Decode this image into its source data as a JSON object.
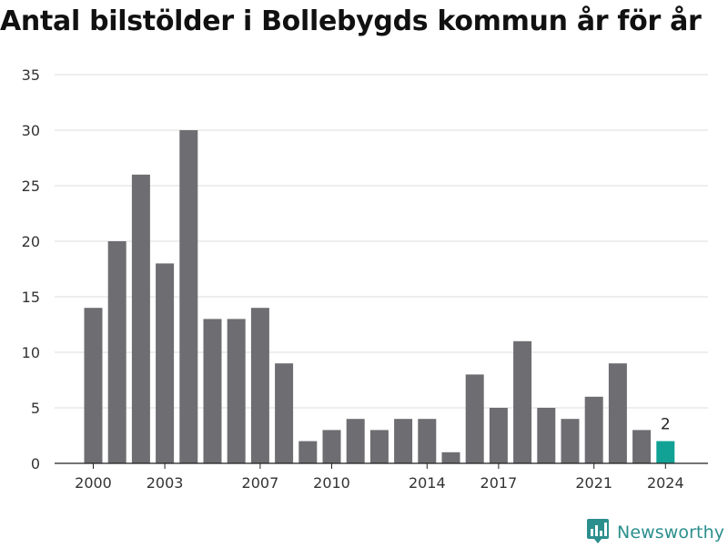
{
  "chart_data": {
    "type": "bar",
    "title": "Antal bilstölder i Bollebygds kommun år för år",
    "x": [
      2000,
      2001,
      2002,
      2003,
      2004,
      2005,
      2006,
      2007,
      2008,
      2009,
      2010,
      2011,
      2012,
      2013,
      2014,
      2015,
      2016,
      2017,
      2018,
      2019,
      2020,
      2021,
      2022,
      2023,
      2024
    ],
    "values": [
      14,
      20,
      26,
      18,
      30,
      13,
      13,
      14,
      9,
      2,
      3,
      4,
      3,
      4,
      4,
      1,
      8,
      5,
      11,
      5,
      4,
      6,
      9,
      3,
      2
    ],
    "x_ticks": [
      2000,
      2003,
      2007,
      2010,
      2014,
      2017,
      2021,
      2024
    ],
    "y_ticks": [
      0,
      5,
      10,
      15,
      20,
      25,
      30,
      35
    ],
    "ylim": [
      0,
      35
    ],
    "xlabel": "",
    "ylabel": "",
    "grid": true,
    "bar_color": "#6e6d72",
    "highlight_color": "#12a295",
    "highlight_label": "2",
    "highlight_year": 2024
  },
  "footer": {
    "brand": "Newsworthy",
    "brand_color": "#2b8f8d",
    "icon": "newsworthy-logo-icon"
  }
}
